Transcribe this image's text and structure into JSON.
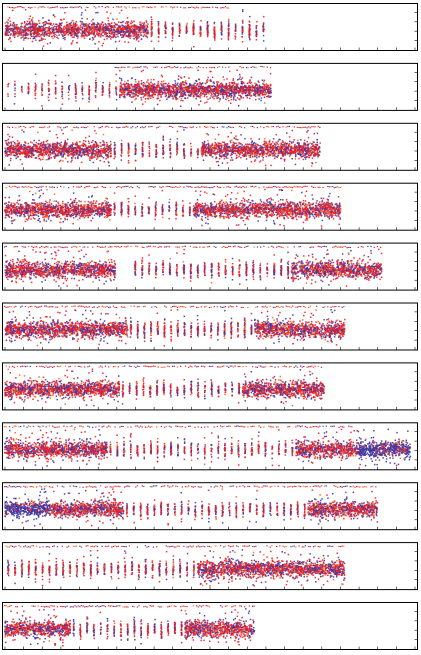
{
  "figure": {
    "panel_count": 11
  },
  "colors": {
    "series_a": "#e8202a",
    "series_b": "#3a3aa8",
    "accent_a": "#f06a2a",
    "frame": "#000000"
  },
  "chart_data": [
    {
      "type": "scatter",
      "series": [
        {
          "color": "#e8202a"
        },
        {
          "color": "#3a3aa8"
        }
      ],
      "xlim": [
        0,
        1
      ],
      "ylim": [
        0,
        1
      ],
      "grid": false,
      "segments": [
        [
          0.0,
          0.35,
          0.95
        ],
        [
          0.35,
          0.64,
          0.45
        ]
      ],
      "end": 0.64,
      "top_line": [
        0.0,
        0.55
      ],
      "blue_bias": []
    },
    {
      "type": "scatter",
      "series": [
        {
          "color": "#e8202a"
        },
        {
          "color": "#3a3aa8"
        }
      ],
      "xlim": [
        0,
        1
      ],
      "ylim": [
        0,
        1
      ],
      "grid": false,
      "segments": [
        [
          0.0,
          0.05,
          0.1
        ],
        [
          0.05,
          0.28,
          0.3
        ],
        [
          0.28,
          0.65,
          1.0
        ]
      ],
      "end": 0.65,
      "top_line": [
        0.27,
        0.65
      ],
      "blue_bias": []
    },
    {
      "type": "scatter",
      "series": [
        {
          "color": "#e8202a"
        },
        {
          "color": "#3a3aa8"
        }
      ],
      "xlim": [
        0,
        1
      ],
      "ylim": [
        0,
        1
      ],
      "grid": false,
      "segments": [
        [
          0.0,
          0.26,
          0.95
        ],
        [
          0.26,
          0.48,
          0.35
        ],
        [
          0.48,
          0.77,
          0.95
        ]
      ],
      "end": 0.77,
      "top_line": [
        0.0,
        0.77
      ],
      "blue_bias": []
    },
    {
      "type": "scatter",
      "series": [
        {
          "color": "#e8202a"
        },
        {
          "color": "#3a3aa8"
        }
      ],
      "xlim": [
        0,
        1
      ],
      "ylim": [
        0,
        1
      ],
      "grid": false,
      "segments": [
        [
          0.0,
          0.26,
          0.95
        ],
        [
          0.26,
          0.46,
          0.35
        ],
        [
          0.46,
          0.82,
          0.95
        ]
      ],
      "end": 0.82,
      "top_line": [
        0.0,
        0.82
      ],
      "blue_bias": []
    },
    {
      "type": "scatter",
      "series": [
        {
          "color": "#e8202a"
        },
        {
          "color": "#3a3aa8"
        }
      ],
      "xlim": [
        0,
        1
      ],
      "ylim": [
        0,
        1
      ],
      "grid": false,
      "segments": [
        [
          0.0,
          0.27,
          0.95
        ],
        [
          0.27,
          0.31,
          0.0
        ],
        [
          0.31,
          0.7,
          0.4
        ],
        [
          0.7,
          0.92,
          0.95
        ]
      ],
      "end": 0.92,
      "top_line": [
        0.0,
        0.92
      ],
      "blue_bias": []
    },
    {
      "type": "scatter",
      "series": [
        {
          "color": "#e8202a"
        },
        {
          "color": "#3a3aa8"
        }
      ],
      "xlim": [
        0,
        1
      ],
      "ylim": [
        0,
        1
      ],
      "grid": false,
      "segments": [
        [
          0.0,
          0.3,
          0.95
        ],
        [
          0.3,
          0.61,
          0.45
        ],
        [
          0.61,
          0.83,
          0.95
        ]
      ],
      "end": 0.83,
      "top_line": [
        0.0,
        0.83
      ],
      "blue_bias": []
    },
    {
      "type": "scatter",
      "series": [
        {
          "color": "#e8202a"
        },
        {
          "color": "#3a3aa8"
        }
      ],
      "xlim": [
        0,
        1
      ],
      "ylim": [
        0,
        1
      ],
      "grid": false,
      "segments": [
        [
          0.0,
          0.28,
          0.95
        ],
        [
          0.28,
          0.58,
          0.35
        ],
        [
          0.58,
          0.78,
          0.95
        ]
      ],
      "end": 0.78,
      "top_line": [
        0.0,
        0.78
      ],
      "blue_bias": []
    },
    {
      "type": "scatter",
      "series": [
        {
          "color": "#e8202a"
        },
        {
          "color": "#3a3aa8"
        }
      ],
      "xlim": [
        0,
        1
      ],
      "ylim": [
        0,
        1
      ],
      "grid": false,
      "segments": [
        [
          0.0,
          0.25,
          0.95
        ],
        [
          0.25,
          0.71,
          0.35
        ],
        [
          0.71,
          0.86,
          0.95
        ],
        [
          0.86,
          0.99,
          1.0
        ]
      ],
      "end": 0.99,
      "top_line": [
        0.0,
        0.85
      ],
      "blue_bias": [
        [
          0.86,
          0.99
        ]
      ]
    },
    {
      "type": "scatter",
      "series": [
        {
          "color": "#e8202a"
        },
        {
          "color": "#3a3aa8"
        }
      ],
      "xlim": [
        0,
        1
      ],
      "ylim": [
        0,
        1
      ],
      "grid": false,
      "segments": [
        [
          0.0,
          0.29,
          0.95
        ],
        [
          0.29,
          0.74,
          0.35
        ],
        [
          0.74,
          0.91,
          0.95
        ]
      ],
      "end": 0.91,
      "top_line": [
        0.0,
        0.91
      ],
      "blue_bias": [
        [
          0.0,
          0.11
        ]
      ]
    },
    {
      "type": "scatter",
      "series": [
        {
          "color": "#e8202a"
        },
        {
          "color": "#3a3aa8"
        }
      ],
      "xlim": [
        0,
        1
      ],
      "ylim": [
        0,
        1
      ],
      "grid": false,
      "segments": [
        [
          0.0,
          0.47,
          0.4
        ],
        [
          0.47,
          0.83,
          0.95
        ]
      ],
      "end": 0.83,
      "top_line": [
        0.0,
        0.83
      ],
      "blue_bias": []
    },
    {
      "type": "scatter",
      "series": [
        {
          "color": "#e8202a"
        },
        {
          "color": "#3a3aa8"
        }
      ],
      "xlim": [
        0,
        1
      ],
      "ylim": [
        0,
        1
      ],
      "grid": false,
      "segments": [
        [
          0.0,
          0.16,
          0.95
        ],
        [
          0.16,
          0.44,
          0.4
        ],
        [
          0.44,
          0.61,
          0.95
        ]
      ],
      "end": 0.61,
      "top_line": [
        0.0,
        0.61
      ],
      "blue_bias": []
    }
  ]
}
